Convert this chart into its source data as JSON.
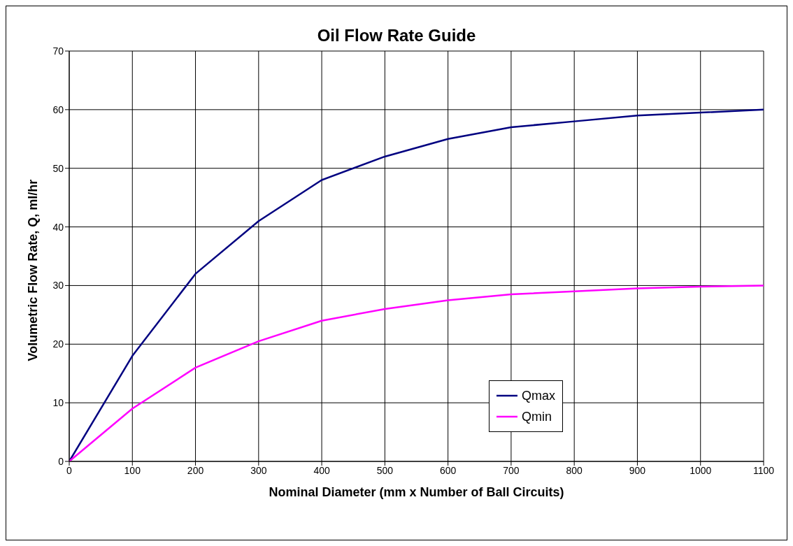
{
  "chart_data": {
    "type": "line",
    "title": "Oil Flow Rate Guide",
    "xlabel": "Nominal Diameter (mm x Number of Ball Circuits)",
    "ylabel": "Volumetric Flow Rate, Q, ml/hr",
    "x": [
      0,
      100,
      200,
      300,
      400,
      500,
      600,
      700,
      800,
      900,
      1000,
      1100
    ],
    "series": [
      {
        "name": "Qmax",
        "color": "#000080",
        "values": [
          0,
          18,
          32,
          41,
          48,
          52,
          55,
          57,
          58,
          59,
          59.5,
          60
        ]
      },
      {
        "name": "Qmin",
        "color": "#ff00ff",
        "values": [
          0,
          9,
          16,
          20.5,
          24,
          26,
          27.5,
          28.5,
          29,
          29.5,
          29.8,
          30
        ]
      }
    ],
    "xlim": [
      0,
      1100
    ],
    "xticks": [
      0,
      100,
      200,
      300,
      400,
      500,
      600,
      700,
      800,
      900,
      1000,
      1100
    ],
    "ylim": [
      0,
      70
    ],
    "yticks": [
      0,
      10,
      20,
      30,
      40,
      50,
      60,
      70
    ],
    "grid": true,
    "legend": "bottom right",
    "marker": "none",
    "line_style": "solid"
  }
}
